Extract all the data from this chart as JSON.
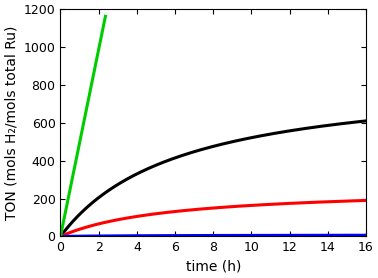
{
  "title": "",
  "xlabel": "time (h)",
  "ylabel": "TON (mols H₂/mols total Ru)",
  "xlim": [
    0,
    16
  ],
  "ylim": [
    0,
    1200
  ],
  "yticks": [
    0,
    200,
    400,
    600,
    800,
    1000,
    1200
  ],
  "xticks": [
    0,
    2,
    4,
    6,
    8,
    10,
    12,
    14,
    16
  ],
  "black_Vmax": 850.5,
  "black_Km": 6.31,
  "red_Vmax": 259.1,
  "red_Km": 5.82,
  "blue_Vmax": 8.0,
  "blue_Km": 5.0,
  "green_slope": 493.6,
  "green_t_end": 2.355,
  "black_color": "#000000",
  "red_color": "#ff0000",
  "blue_color": "#0000ff",
  "green_color": "#00cc00",
  "linewidth": 2.2,
  "background_color": "#ffffff",
  "tick_fontsize": 9,
  "label_fontsize": 10
}
